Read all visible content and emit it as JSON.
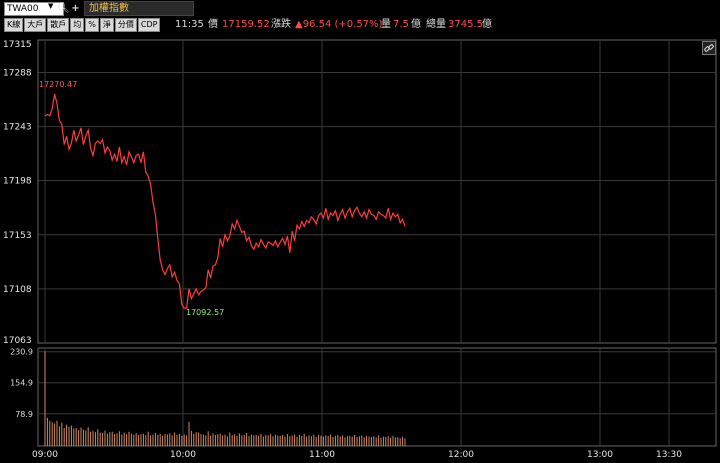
{
  "toolbar": {
    "symbol": "TWA00",
    "index_name": "加權指數",
    "buttons": [
      "K線",
      "大戶",
      "散戶",
      "均",
      "%",
      "淨",
      "分價",
      "CDP"
    ],
    "search_icon": "search-icon",
    "add_icon": "plus-icon"
  },
  "quote": {
    "time": "11:35",
    "price_label": "價",
    "price": "17159.52",
    "change_label": "漲跌",
    "change": "▲96.54 (+0.57%)",
    "volume_label": "量",
    "volume": "7.5",
    "volume_unit": "億",
    "total_label": "總量",
    "total": "3745.5",
    "total_unit": "億"
  },
  "link_icon": "link-icon",
  "colors": {
    "up": "#ff3b3b",
    "grid": "#3a3a3a",
    "low_label": "#8cf07c",
    "volume": "#d08a60"
  },
  "chart_data": {
    "type": "line",
    "price_axis": {
      "ticks": [
        "17315",
        "17288",
        "17243",
        "17198",
        "17153",
        "17108",
        "17063"
      ],
      "ylim": [
        17063,
        17315
      ]
    },
    "volume_axis": {
      "ticks": [
        "230.9",
        "154.9",
        "78.9"
      ],
      "ylim": [
        0,
        240
      ]
    },
    "x_ticks": [
      "09:00",
      "10:00",
      "11:00",
      "12:00",
      "13:00",
      "13:30"
    ],
    "annotations": {
      "high": "17270.47",
      "low": "17092.57"
    },
    "series": [
      {
        "type": "line",
        "x": [
          0,
          1,
          2,
          3,
          4,
          5,
          6,
          7,
          8,
          9,
          10,
          11,
          12,
          13,
          14,
          15,
          16,
          17,
          18,
          19,
          20,
          21,
          22,
          23,
          24,
          25,
          26,
          27,
          28,
          29,
          30,
          31,
          32,
          33,
          34,
          35,
          36,
          37,
          38,
          39,
          40,
          41,
          42,
          43,
          44,
          45,
          46,
          47,
          48,
          49,
          50,
          51,
          52,
          53,
          54,
          55,
          56,
          57,
          58,
          59,
          60,
          61,
          62,
          63,
          64,
          65,
          66,
          67,
          68,
          69,
          70,
          71,
          72,
          73,
          74,
          75,
          76,
          77,
          78,
          79,
          80,
          81,
          82,
          83,
          84,
          85,
          86,
          87,
          88,
          89,
          90,
          91,
          92,
          93,
          94,
          95,
          96,
          97,
          98,
          99,
          100,
          101,
          102,
          103,
          104,
          105,
          106,
          107,
          108,
          109,
          110,
          111,
          112,
          113,
          114,
          115,
          116,
          117,
          118,
          119,
          120,
          121,
          122,
          123,
          124,
          125,
          126,
          127,
          128,
          129,
          130,
          131,
          132,
          133,
          134,
          135,
          136,
          137,
          138,
          139,
          140,
          141,
          142,
          143,
          144,
          145,
          146,
          147,
          148,
          149,
          150
        ],
        "values": [
          17252,
          17253,
          17252,
          17258,
          17270,
          17262,
          17248,
          17245,
          17228,
          17235,
          17224,
          17229,
          17240,
          17231,
          17236,
          17242,
          17228,
          17235,
          17240,
          17225,
          17219,
          17229,
          17231,
          17229,
          17232,
          17221,
          17226,
          17223,
          17215,
          17220,
          17214,
          17226,
          17213,
          17218,
          17211,
          17222,
          17218,
          17213,
          17219,
          17220,
          17213,
          17222,
          17205,
          17202,
          17195,
          17180,
          17170,
          17150,
          17132,
          17124,
          17120,
          17125,
          17128,
          17118,
          17122,
          17115,
          17112,
          17095,
          17092,
          17092,
          17108,
          17100,
          17104,
          17108,
          17103,
          17106,
          17107,
          17109,
          17124,
          17117,
          17127,
          17128,
          17134,
          17150,
          17143,
          17153,
          17148,
          17152,
          17162,
          17158,
          17165,
          17160,
          17155,
          17156,
          17148,
          17151,
          17144,
          17141,
          17146,
          17143,
          17149,
          17145,
          17142,
          17147,
          17146,
          17144,
          17148,
          17143,
          17147,
          17150,
          17145,
          17152,
          17138,
          17156,
          17148,
          17161,
          17158,
          17164,
          17160,
          17165,
          17163,
          17168,
          17166,
          17162,
          17169,
          17171,
          17167,
          17175,
          17166,
          17171,
          17169,
          17173,
          17165,
          17170,
          17174,
          17167,
          17172,
          17175,
          17168,
          17173,
          17176,
          17171,
          17168,
          17172,
          17167,
          17174,
          17170,
          17169,
          17166,
          17172,
          17170,
          17169,
          17167,
          17175,
          17166,
          17171,
          17168,
          17170,
          17163,
          17166,
          17160
        ]
      },
      {
        "type": "bar",
        "name": "volume",
        "values": [
          231,
          69,
          62,
          58,
          55,
          62,
          48,
          57,
          44,
          52,
          47,
          50,
          43,
          44,
          39,
          45,
          40,
          38,
          46,
          35,
          37,
          34,
          41,
          33,
          32,
          38,
          30,
          34,
          35,
          29,
          31,
          36,
          28,
          33,
          29,
          35,
          30,
          28,
          31,
          27,
          29,
          30,
          27,
          35,
          26,
          28,
          32,
          27,
          30,
          25,
          29,
          28,
          31,
          26,
          33,
          27,
          30,
          25,
          28,
          26,
          59,
          37,
          30,
          34,
          33,
          29,
          28,
          26,
          36,
          25,
          31,
          27,
          29,
          30,
          26,
          28,
          24,
          33,
          27,
          29,
          25,
          31,
          26,
          27,
          32,
          24,
          28,
          26,
          27,
          25,
          30,
          23,
          27,
          26,
          29,
          24,
          28,
          26,
          25,
          27,
          23,
          29,
          24,
          26,
          28,
          22,
          27,
          25,
          30,
          23,
          26,
          24,
          28,
          22,
          27,
          25,
          23,
          26,
          24,
          28,
          22,
          25,
          27,
          23,
          26,
          21,
          24,
          25,
          23,
          27,
          22,
          24,
          26,
          21,
          25,
          23,
          22,
          24,
          21,
          26,
          20,
          23,
          22,
          24,
          20,
          25,
          21,
          22,
          19,
          23,
          19
        ]
      }
    ]
  }
}
